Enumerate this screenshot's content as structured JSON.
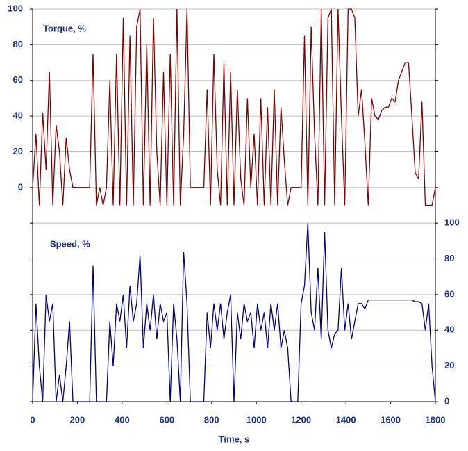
{
  "chart_data": {
    "type": "line",
    "xlabel": "Time, s",
    "x": [
      0,
      15,
      30,
      45,
      60,
      75,
      90,
      105,
      120,
      135,
      150,
      165,
      180,
      195,
      210,
      225,
      240,
      255,
      270,
      285,
      300,
      315,
      330,
      345,
      360,
      375,
      390,
      405,
      420,
      435,
      450,
      465,
      480,
      495,
      510,
      525,
      540,
      555,
      570,
      585,
      600,
      615,
      630,
      645,
      660,
      675,
      690,
      705,
      720,
      735,
      750,
      765,
      780,
      795,
      810,
      825,
      840,
      855,
      870,
      885,
      900,
      915,
      930,
      945,
      960,
      975,
      990,
      1005,
      1020,
      1035,
      1050,
      1065,
      1080,
      1095,
      1110,
      1125,
      1140,
      1155,
      1170,
      1185,
      1200,
      1215,
      1230,
      1245,
      1260,
      1275,
      1290,
      1305,
      1320,
      1335,
      1350,
      1365,
      1380,
      1395,
      1410,
      1425,
      1440,
      1455,
      1470,
      1485,
      1500,
      1515,
      1530,
      1545,
      1560,
      1575,
      1590,
      1605,
      1620,
      1635,
      1650,
      1665,
      1680,
      1695,
      1710,
      1725,
      1740,
      1755,
      1770,
      1785,
      1800
    ],
    "series": [
      {
        "name": "Torque, %",
        "color": "#800000",
        "axis": "y",
        "values": [
          0,
          30,
          -10,
          42,
          10,
          65,
          -10,
          35,
          20,
          -10,
          28,
          10,
          0,
          0,
          0,
          0,
          0,
          0,
          75,
          -10,
          0,
          -10,
          0,
          60,
          -10,
          75,
          -10,
          95,
          -10,
          85,
          -10,
          90,
          100,
          -10,
          80,
          -10,
          95,
          20,
          -10,
          65,
          -10,
          75,
          -10,
          100,
          -10,
          30,
          100,
          0,
          0,
          0,
          0,
          0,
          55,
          -10,
          75,
          10,
          -10,
          70,
          -10,
          65,
          -10,
          55,
          5,
          -10,
          50,
          0,
          30,
          -10,
          50,
          -10,
          45,
          -10,
          55,
          -10,
          45,
          15,
          -10,
          0,
          0,
          0,
          0,
          85,
          -10,
          90,
          30,
          -10,
          100,
          -10,
          95,
          100,
          -10,
          100,
          40,
          -10,
          100,
          100,
          95,
          40,
          55,
          25,
          -10,
          50,
          40,
          38,
          43,
          45,
          45,
          50,
          48,
          60,
          65,
          70,
          70,
          40,
          8,
          5,
          48,
          -10,
          -10,
          -10,
          0
        ]
      },
      {
        "name": "Speed, %",
        "color": "#000080",
        "axis": "y2",
        "values": [
          0,
          55,
          20,
          0,
          60,
          45,
          55,
          0,
          15,
          0,
          20,
          45,
          0,
          0,
          0,
          0,
          0,
          0,
          76,
          0,
          0,
          0,
          0,
          45,
          20,
          55,
          45,
          60,
          30,
          65,
          45,
          55,
          82,
          30,
          55,
          40,
          60,
          35,
          55,
          45,
          50,
          0,
          55,
          35,
          0,
          84,
          55,
          0,
          0,
          0,
          0,
          0,
          50,
          30,
          55,
          40,
          55,
          35,
          50,
          60,
          0,
          50,
          35,
          55,
          45,
          50,
          30,
          55,
          40,
          50,
          30,
          55,
          40,
          55,
          30,
          40,
          30,
          0,
          0,
          0,
          55,
          65,
          100,
          50,
          40,
          75,
          35,
          95,
          40,
          30,
          38,
          40,
          75,
          40,
          55,
          35,
          45,
          55,
          55,
          52,
          57,
          57,
          57,
          57,
          57,
          57,
          57,
          57,
          57,
          57,
          57,
          57,
          57,
          57,
          56,
          56,
          55,
          40,
          55,
          20,
          0
        ]
      }
    ],
    "xlim": [
      0,
      1800
    ],
    "xticks": [
      0,
      200,
      400,
      600,
      800,
      1000,
      1200,
      1400,
      1600,
      1800
    ],
    "ylim": [
      -120,
      100
    ],
    "yticks": [
      0,
      20,
      40,
      60,
      80,
      100
    ],
    "y2lim": [
      0,
      220
    ],
    "y2ticks": [
      0,
      20,
      40,
      60,
      80,
      100
    ],
    "grid": true
  }
}
